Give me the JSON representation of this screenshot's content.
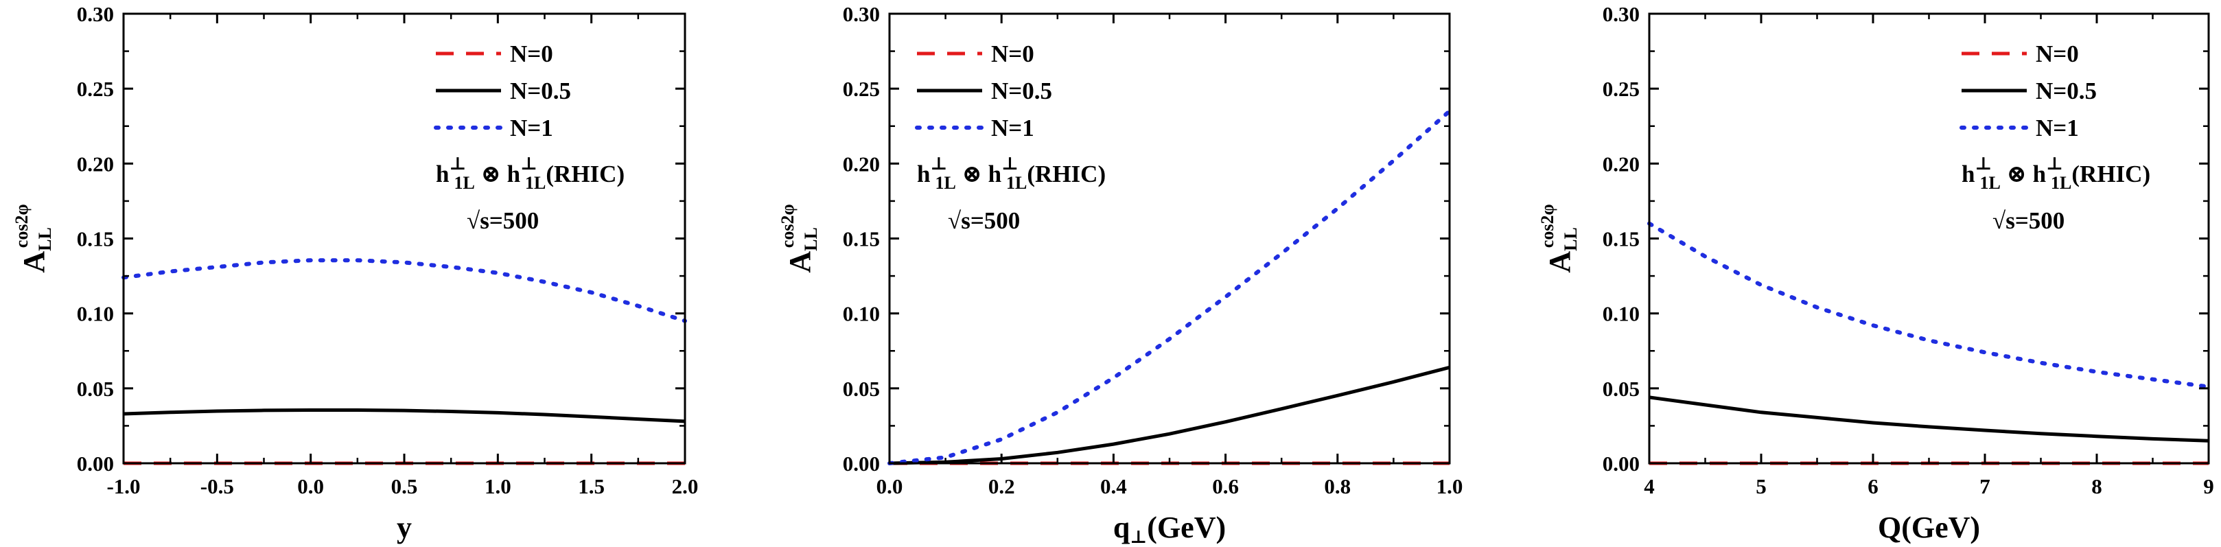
{
  "chart_data": [
    {
      "type": "line",
      "xlabel": "y",
      "ylabel_base": "A",
      "ylabel_sub": "LL",
      "ylabel_sup": "cos2φ",
      "xlim": [
        -1.0,
        2.0
      ],
      "ylim": [
        0.0,
        0.3
      ],
      "xticks": [
        "-1.0",
        "-0.5",
        "0.0",
        "0.5",
        "1.0",
        "1.5",
        "2.0"
      ],
      "yticks": [
        "0.00",
        "0.05",
        "0.10",
        "0.15",
        "0.20",
        "0.25",
        "0.30"
      ],
      "legend_position": "top-right",
      "annotation": {
        "func": "h",
        "sub": "1L",
        "sup": "⊥",
        "otimes": "⊗",
        "suffix": "(RHIC)",
        "energy": "√s=500"
      },
      "series": [
        {
          "name": "N=0",
          "style": "dashed",
          "color": "#e31a1c",
          "x": [
            -1.0,
            -0.5,
            0.0,
            0.5,
            1.0,
            1.5,
            2.0
          ],
          "y": [
            0.0,
            0.0,
            0.0,
            0.0,
            0.0,
            0.0,
            0.0
          ]
        },
        {
          "name": "N=0.5",
          "style": "solid",
          "color": "#000000",
          "x": [
            -1.0,
            -0.75,
            -0.5,
            -0.25,
            0.0,
            0.25,
            0.5,
            0.75,
            1.0,
            1.25,
            1.5,
            1.75,
            2.0
          ],
          "y": [
            0.033,
            0.034,
            0.0348,
            0.0353,
            0.0355,
            0.0355,
            0.0352,
            0.0346,
            0.0337,
            0.0325,
            0.031,
            0.0295,
            0.028
          ]
        },
        {
          "name": "N=1",
          "style": "dotted",
          "color": "#1f2ee0",
          "x": [
            -1.0,
            -0.75,
            -0.5,
            -0.25,
            0.0,
            0.25,
            0.5,
            0.75,
            1.0,
            1.25,
            1.5,
            1.75,
            2.0
          ],
          "y": [
            0.124,
            0.128,
            0.131,
            0.134,
            0.1355,
            0.1355,
            0.134,
            0.131,
            0.127,
            0.121,
            0.114,
            0.105,
            0.095
          ]
        }
      ]
    },
    {
      "type": "line",
      "xlabel_base": "q",
      "xlabel_sub": "⊥",
      "xlabel_suffix": "(GeV)",
      "ylabel_base": "A",
      "ylabel_sub": "LL",
      "ylabel_sup": "cos2φ",
      "xlim": [
        0.0,
        1.0
      ],
      "ylim": [
        0.0,
        0.3
      ],
      "xticks": [
        "0.0",
        "0.2",
        "0.4",
        "0.6",
        "0.8",
        "1.0"
      ],
      "yticks": [
        "0.00",
        "0.05",
        "0.10",
        "0.15",
        "0.20",
        "0.25",
        "0.30"
      ],
      "legend_position": "top-left",
      "annotation": {
        "func": "h",
        "sub": "1L",
        "sup": "⊥",
        "otimes": "⊗",
        "suffix": "(RHIC)",
        "energy": "√s=500"
      },
      "series": [
        {
          "name": "N=0",
          "style": "dashed",
          "color": "#e31a1c",
          "x": [
            0.0,
            0.2,
            0.4,
            0.6,
            0.8,
            1.0
          ],
          "y": [
            0.0,
            0.0,
            0.0,
            0.0,
            0.0,
            0.0
          ]
        },
        {
          "name": "N=0.5",
          "style": "solid",
          "color": "#000000",
          "x": [
            0.0,
            0.1,
            0.2,
            0.3,
            0.4,
            0.5,
            0.6,
            0.7,
            0.8,
            0.9,
            1.0
          ],
          "y": [
            0.0,
            0.0008,
            0.003,
            0.0072,
            0.0128,
            0.0196,
            0.0276,
            0.0363,
            0.0452,
            0.0543,
            0.064
          ]
        },
        {
          "name": "N=1",
          "style": "dotted",
          "color": "#1f2ee0",
          "x": [
            0.0,
            0.1,
            0.2,
            0.3,
            0.4,
            0.5,
            0.6,
            0.7,
            0.8,
            0.9,
            1.0
          ],
          "y": [
            0.0,
            0.004,
            0.016,
            0.034,
            0.057,
            0.083,
            0.111,
            0.14,
            0.17,
            0.202,
            0.235
          ]
        }
      ]
    },
    {
      "type": "line",
      "xlabel": "Q(GeV)",
      "ylabel_base": "A",
      "ylabel_sub": "LL",
      "ylabel_sup": "cos2φ",
      "xlim": [
        4,
        9
      ],
      "ylim": [
        0.0,
        0.3
      ],
      "xticks": [
        "4",
        "5",
        "6",
        "7",
        "8",
        "9"
      ],
      "yticks": [
        "0.00",
        "0.05",
        "0.10",
        "0.15",
        "0.20",
        "0.25",
        "0.30"
      ],
      "legend_position": "top-right",
      "annotation": {
        "func": "h",
        "sub": "1L",
        "sup": "⊥",
        "otimes": "⊗",
        "suffix": "(RHIC)",
        "energy": "√s=500"
      },
      "series": [
        {
          "name": "N=0",
          "style": "dashed",
          "color": "#e31a1c",
          "x": [
            4,
            5,
            6,
            7,
            8,
            9
          ],
          "y": [
            0.0,
            0.0,
            0.0,
            0.0,
            0.0,
            0.0
          ]
        },
        {
          "name": "N=0.5",
          "style": "solid",
          "color": "#000000",
          "x": [
            4.0,
            4.5,
            5.0,
            5.5,
            6.0,
            6.5,
            7.0,
            7.5,
            8.0,
            8.5,
            9.0
          ],
          "y": [
            0.044,
            0.039,
            0.034,
            0.0305,
            0.027,
            0.0243,
            0.022,
            0.0198,
            0.018,
            0.0163,
            0.015
          ]
        },
        {
          "name": "N=1",
          "style": "dotted",
          "color": "#1f2ee0",
          "x": [
            4.0,
            4.5,
            5.0,
            5.5,
            6.0,
            6.5,
            7.0,
            7.5,
            8.0,
            8.5,
            9.0
          ],
          "y": [
            0.16,
            0.138,
            0.119,
            0.104,
            0.092,
            0.082,
            0.074,
            0.067,
            0.061,
            0.056,
            0.051
          ]
        }
      ]
    }
  ]
}
